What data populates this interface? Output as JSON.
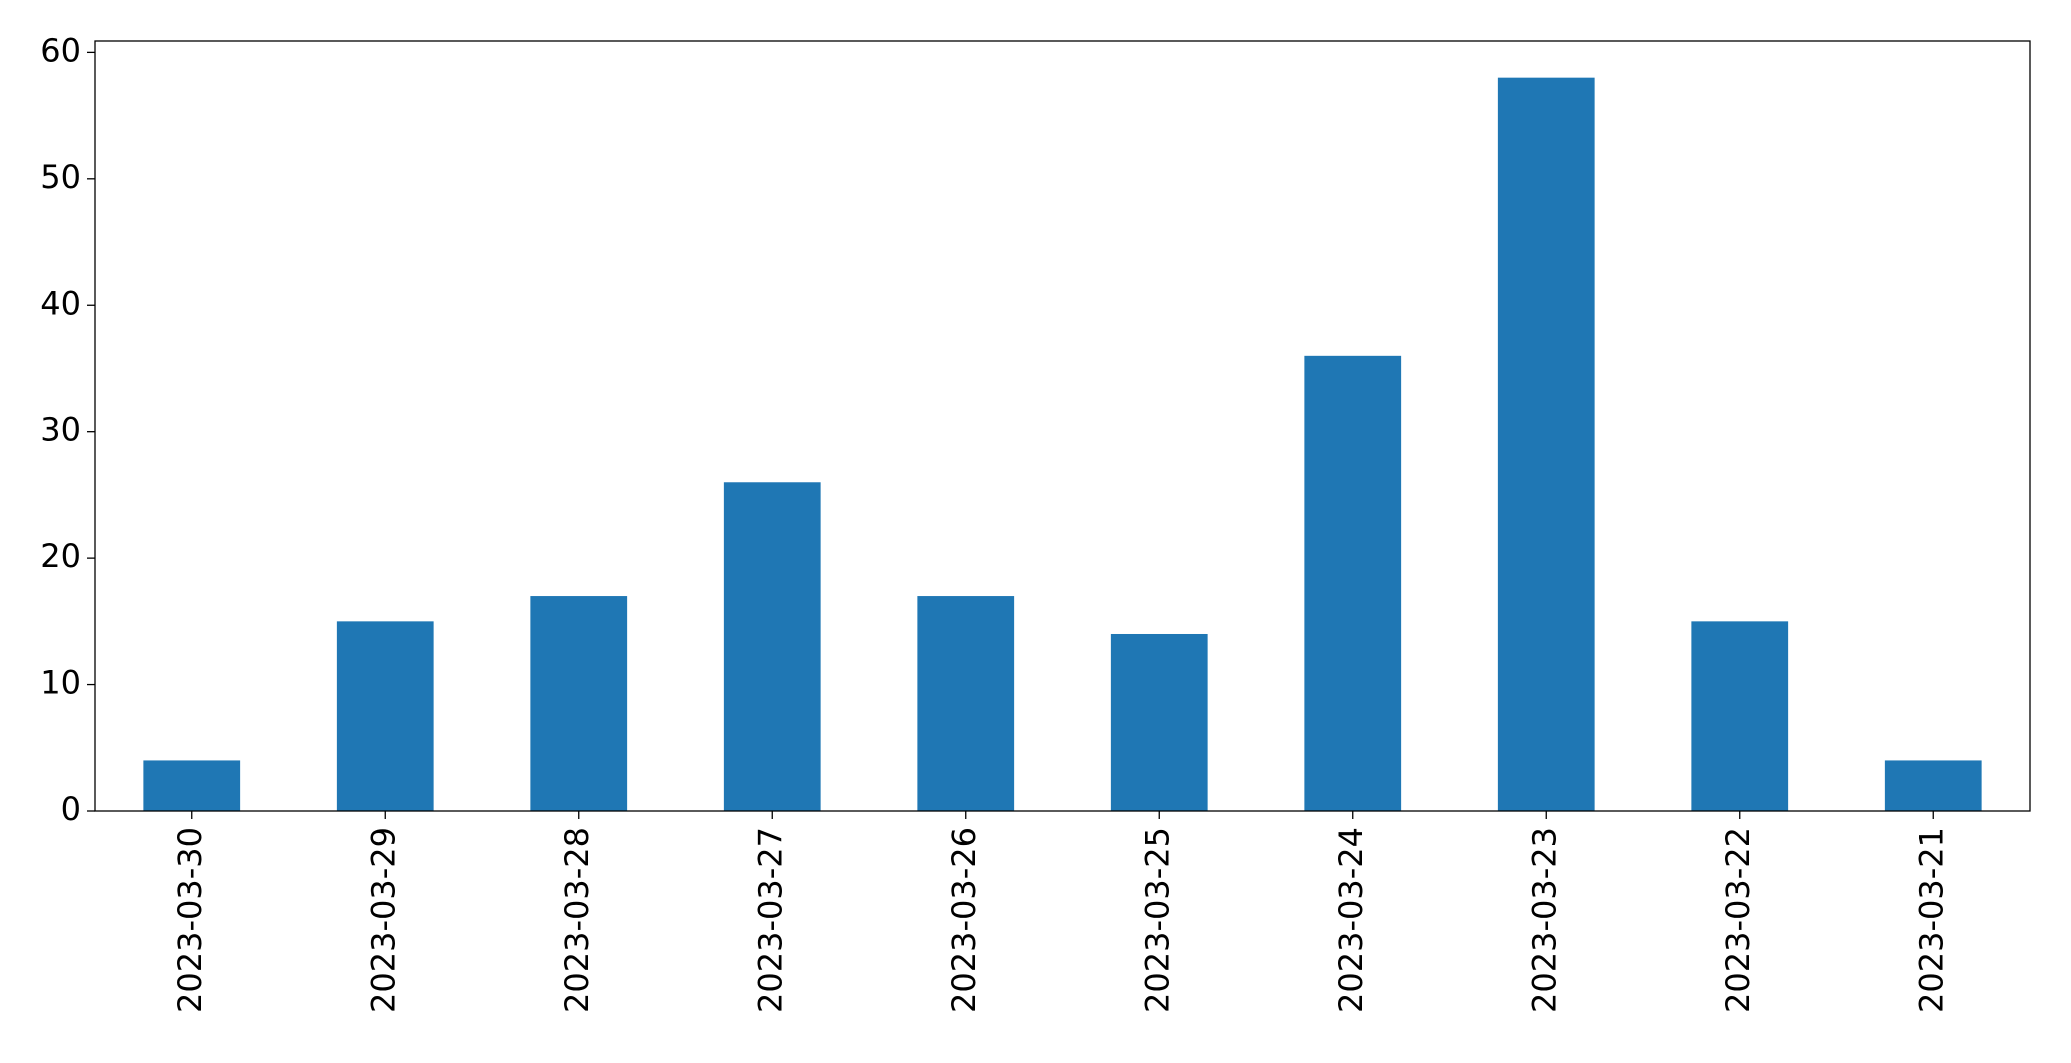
{
  "chart_data": {
    "type": "bar",
    "categories": [
      "2023-03-30",
      "2023-03-29",
      "2023-03-28",
      "2023-03-27",
      "2023-03-26",
      "2023-03-25",
      "2023-03-24",
      "2023-03-23",
      "2023-03-22",
      "2023-03-21"
    ],
    "values": [
      4,
      15,
      17,
      26,
      17,
      14,
      36,
      58,
      15,
      4
    ],
    "color": "#1f77b4",
    "ylim": [
      0,
      60.9
    ],
    "yticks": [
      0,
      10,
      20,
      30,
      40,
      50,
      60
    ],
    "grid": false
  }
}
